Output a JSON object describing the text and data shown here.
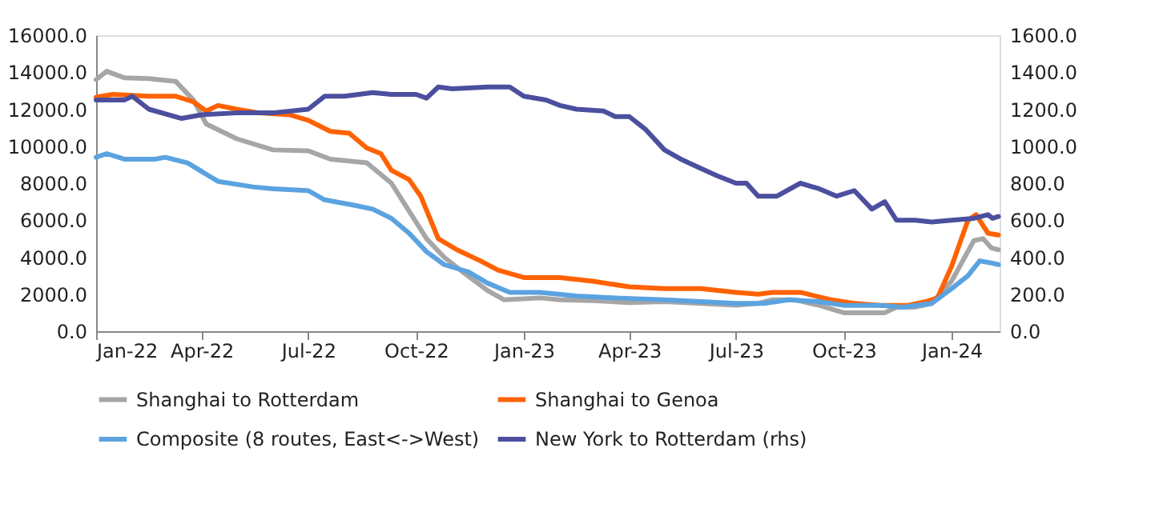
{
  "chart_data": {
    "type": "line",
    "xlim": [
      "2022-01-01",
      "2024-02-11"
    ],
    "xticks": [
      {
        "value": "2022-01-01",
        "label": "Jan-22"
      },
      {
        "value": "2022-04-01",
        "label": "Apr-22"
      },
      {
        "value": "2022-07-01",
        "label": "Jul-22"
      },
      {
        "value": "2022-10-01",
        "label": "Oct-22"
      },
      {
        "value": "2023-01-01",
        "label": "Jan-23"
      },
      {
        "value": "2023-04-01",
        "label": "Apr-23"
      },
      {
        "value": "2023-07-01",
        "label": "Jul-23"
      },
      {
        "value": "2023-10-01",
        "label": "Oct-23"
      },
      {
        "value": "2024-01-01",
        "label": "Jan-24"
      }
    ],
    "ylim": [
      0,
      16000
    ],
    "yticks": [
      {
        "value": 0,
        "label": "0.0"
      },
      {
        "value": 2000,
        "label": "2000.0"
      },
      {
        "value": 4000,
        "label": "4000.0"
      },
      {
        "value": 6000,
        "label": "6000.0"
      },
      {
        "value": 8000,
        "label": "8000.0"
      },
      {
        "value": 10000,
        "label": "10000.0"
      },
      {
        "value": 12000,
        "label": "12000.0"
      },
      {
        "value": 14000,
        "label": "14000.0"
      },
      {
        "value": 16000,
        "label": "16000.0"
      }
    ],
    "y2lim": [
      0,
      1600
    ],
    "y2ticks": [
      {
        "value": 0,
        "label": "0.0"
      },
      {
        "value": 200,
        "label": "200.0"
      },
      {
        "value": 400,
        "label": "400.0"
      },
      {
        "value": 600,
        "label": "600.0"
      },
      {
        "value": 800,
        "label": "800.0"
      },
      {
        "value": 1000,
        "label": "1000.0"
      },
      {
        "value": 1200,
        "label": "1200.0"
      },
      {
        "value": 1400,
        "label": "1400.0"
      },
      {
        "value": 1600,
        "label": "1600.0"
      }
    ],
    "grid": false,
    "legend": "bottom",
    "marker": "none",
    "line_style": "solid",
    "series": [
      {
        "name": "Shanghai to Rotterdam",
        "color": "#a6a6a6",
        "x": [
          "2022-01-01",
          "2022-01-10",
          "2022-01-25",
          "2022-02-15",
          "2022-03-10",
          "2022-03-25",
          "2022-04-05",
          "2022-05-01",
          "2022-06-01",
          "2022-07-01",
          "2022-07-20",
          "2022-08-20",
          "2022-09-10",
          "2022-09-25",
          "2022-10-10",
          "2022-10-25",
          "2022-11-10",
          "2022-12-01",
          "2022-12-15",
          "2023-01-15",
          "2023-02-01",
          "2023-03-01",
          "2023-04-01",
          "2023-05-01",
          "2023-06-01",
          "2023-07-01",
          "2023-07-20",
          "2023-08-01",
          "2023-08-20",
          "2023-09-10",
          "2023-10-01",
          "2023-10-20",
          "2023-11-05",
          "2023-11-15",
          "2023-12-01",
          "2023-12-15",
          "2024-01-01",
          "2024-01-20",
          "2024-01-28",
          "2024-02-04",
          "2024-02-10"
        ],
        "values": [
          13600,
          14050,
          13700,
          13650,
          13500,
          12500,
          11200,
          10400,
          9800,
          9750,
          9300,
          9100,
          8000,
          6500,
          5000,
          4000,
          3200,
          2200,
          1700,
          1800,
          1700,
          1650,
          1550,
          1600,
          1500,
          1400,
          1500,
          1700,
          1700,
          1400,
          1000,
          1000,
          1000,
          1300,
          1300,
          1500,
          2700,
          4900,
          5000,
          4500,
          4400
        ]
      },
      {
        "name": "Shanghai to Genoa",
        "color": "#ff6200",
        "x": [
          "2022-01-01",
          "2022-01-15",
          "2022-02-15",
          "2022-03-10",
          "2022-03-25",
          "2022-04-05",
          "2022-04-15",
          "2022-05-01",
          "2022-05-20",
          "2022-06-15",
          "2022-07-01",
          "2022-07-20",
          "2022-08-05",
          "2022-08-20",
          "2022-09-01",
          "2022-09-10",
          "2022-09-25",
          "2022-10-05",
          "2022-10-20",
          "2022-11-05",
          "2022-11-25",
          "2022-12-10",
          "2023-01-01",
          "2023-02-01",
          "2023-03-01",
          "2023-04-01",
          "2023-05-01",
          "2023-06-01",
          "2023-07-01",
          "2023-07-20",
          "2023-08-01",
          "2023-08-25",
          "2023-09-20",
          "2023-10-10",
          "2023-11-01",
          "2023-11-25",
          "2023-12-10",
          "2023-12-20",
          "2024-01-01",
          "2024-01-15",
          "2024-01-22",
          "2024-02-01",
          "2024-02-10"
        ],
        "values": [
          12650,
          12800,
          12700,
          12700,
          12400,
          11900,
          12200,
          12000,
          11800,
          11700,
          11400,
          10800,
          10700,
          9900,
          9600,
          8700,
          8200,
          7300,
          5000,
          4400,
          3800,
          3300,
          2900,
          2900,
          2700,
          2400,
          2300,
          2300,
          2100,
          2000,
          2100,
          2100,
          1700,
          1500,
          1400,
          1400,
          1600,
          1800,
          3500,
          6000,
          6300,
          5300,
          5200
        ]
      },
      {
        "name": "Composite (8 routes, East<->West)",
        "color": "#5ba3e0",
        "x": [
          "2022-01-01",
          "2022-01-10",
          "2022-01-25",
          "2022-02-20",
          "2022-03-01",
          "2022-03-20",
          "2022-04-15",
          "2022-05-15",
          "2022-06-01",
          "2022-07-01",
          "2022-07-15",
          "2022-08-10",
          "2022-08-25",
          "2022-09-10",
          "2022-09-25",
          "2022-10-10",
          "2022-10-25",
          "2022-11-15",
          "2022-12-01",
          "2022-12-20",
          "2023-01-15",
          "2023-02-15",
          "2023-03-20",
          "2023-05-01",
          "2023-06-01",
          "2023-07-01",
          "2023-07-25",
          "2023-08-15",
          "2023-09-10",
          "2023-10-01",
          "2023-11-01",
          "2023-11-20",
          "2023-12-15",
          "2024-01-01",
          "2024-01-15",
          "2024-01-25",
          "2024-02-03",
          "2024-02-10"
        ],
        "values": [
          9400,
          9600,
          9300,
          9300,
          9400,
          9100,
          8100,
          7800,
          7700,
          7600,
          7100,
          6800,
          6600,
          6100,
          5300,
          4300,
          3600,
          3200,
          2600,
          2100,
          2100,
          1900,
          1800,
          1700,
          1600,
          1500,
          1500,
          1700,
          1600,
          1400,
          1400,
          1300,
          1500,
          2300,
          3000,
          3800,
          3700,
          3600
        ]
      },
      {
        "name": "New York to Rotterdam (rhs)",
        "color": "#4b4f9e",
        "axis": "y2",
        "x": [
          "2022-01-01",
          "2022-01-25",
          "2022-02-01",
          "2022-02-15",
          "2022-03-15",
          "2022-04-01",
          "2022-05-01",
          "2022-06-01",
          "2022-07-01",
          "2022-07-15",
          "2022-08-01",
          "2022-08-25",
          "2022-09-10",
          "2022-10-01",
          "2022-10-10",
          "2022-10-20",
          "2022-11-01",
          "2022-12-01",
          "2022-12-20",
          "2023-01-01",
          "2023-01-20",
          "2023-02-01",
          "2023-02-15",
          "2023-03-10",
          "2023-03-20",
          "2023-04-01",
          "2023-04-15",
          "2023-05-01",
          "2023-05-15",
          "2023-06-01",
          "2023-06-15",
          "2023-07-01",
          "2023-07-10",
          "2023-07-20",
          "2023-08-05",
          "2023-08-25",
          "2023-09-10",
          "2023-09-25",
          "2023-10-10",
          "2023-10-25",
          "2023-11-05",
          "2023-11-15",
          "2023-12-01",
          "2023-12-15",
          "2024-01-01",
          "2024-01-20",
          "2024-02-01",
          "2024-02-05",
          "2024-02-10"
        ],
        "values": [
          1250,
          1250,
          1270,
          1200,
          1150,
          1170,
          1180,
          1180,
          1200,
          1270,
          1270,
          1290,
          1280,
          1280,
          1260,
          1320,
          1310,
          1320,
          1320,
          1270,
          1250,
          1220,
          1200,
          1190,
          1160,
          1160,
          1090,
          980,
          930,
          880,
          840,
          800,
          800,
          730,
          730,
          800,
          770,
          730,
          760,
          660,
          700,
          600,
          600,
          590,
          600,
          610,
          630,
          610,
          620
        ]
      }
    ]
  }
}
